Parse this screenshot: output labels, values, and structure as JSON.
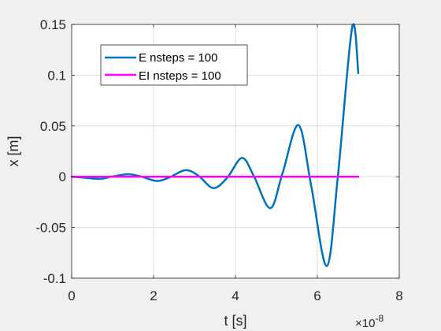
{
  "chart_data": {
    "type": "line",
    "xlabel": "t [s]",
    "ylabel": "x [m]",
    "x_exponent_label": "×10",
    "x_exponent_power": "-8",
    "xlim": [
      0,
      8
    ],
    "ylim": [
      -0.1,
      0.15
    ],
    "x_ticks": [
      0,
      2,
      4,
      6,
      8
    ],
    "x_tick_labels": [
      "0",
      "2",
      "4",
      "6",
      "8"
    ],
    "y_ticks": [
      -0.1,
      -0.05,
      0,
      0.05,
      0.1,
      0.15
    ],
    "y_tick_labels": [
      "-0.1",
      "-0.05",
      "0",
      "0.05",
      "0.1",
      "0.15"
    ],
    "grid": true,
    "legend_position": "top-left",
    "series": [
      {
        "name": "E nsteps = 100",
        "color": "#0072BD",
        "x": [
          0,
          0.3,
          0.69,
          1.0,
          1.38,
          1.7,
          2.08,
          2.4,
          2.78,
          3.1,
          3.46,
          3.8,
          4.16,
          4.45,
          4.85,
          5.15,
          5.54,
          5.85,
          6.23,
          6.5,
          6.85,
          7.0
        ],
        "y": [
          0,
          -0.0009,
          -0.0022,
          0.0002,
          0.0024,
          0.0001,
          -0.0042,
          -0.0005,
          0.0065,
          0.0008,
          -0.0112,
          -0.001,
          0.0185,
          0.0005,
          -0.031,
          0.0035,
          0.0508,
          -0.009,
          -0.088,
          0.0,
          0.147,
          0.102
        ]
      },
      {
        "name": "EI nsteps = 100",
        "color": "#FF00FF",
        "x": [
          0,
          1,
          2,
          3,
          4,
          5,
          6,
          7.0
        ],
        "y": [
          0,
          0,
          0,
          0,
          0,
          0,
          0,
          0
        ]
      }
    ]
  }
}
